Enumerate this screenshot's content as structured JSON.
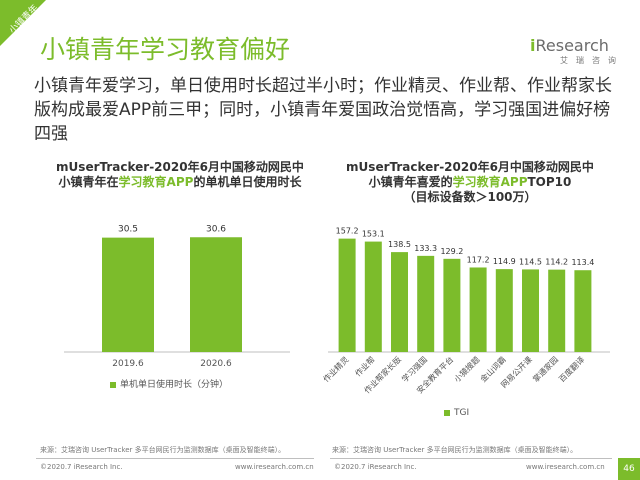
{
  "corner_tag": "小镇青年",
  "page_title": "小镇青年学习教育偏好",
  "logo": {
    "prefix": "i",
    "name": "Research",
    "sub": "艾瑞咨询"
  },
  "subtitle": "小镇青年爱学习，单日使用时长超过半小时；作业精灵、作业帮、作业帮家长版构成最爱APP前三甲；同时，小镇青年爱国政治觉悟高，学习强国进偏好榜四强",
  "left_chart_title": {
    "line1": "mUserTracker-2020年6月中国移动网民中",
    "line2_pre": "小镇青年在",
    "line2_hl": "学习教育APP",
    "line2_post": "的单机单日使用时长"
  },
  "right_chart_title": {
    "line1": "mUserTracker-2020年6月中国移动网民中",
    "line2_pre": "小镇青年喜爱的",
    "line2_hl": "学习教育APP",
    "line2_post": "TOP10",
    "line3": "（目标设备数＞100万）"
  },
  "chart_data": [
    {
      "type": "bar",
      "categories": [
        "2019.6",
        "2020.6"
      ],
      "series": [
        {
          "name": "单机单日使用时长（分钟）",
          "values": [
            30.5,
            30.6
          ]
        }
      ],
      "data_labels": [
        "30.5",
        "30.6"
      ],
      "ylim": [
        0,
        32
      ],
      "grid": false,
      "legend": "bottom",
      "color": "#7cbc2b"
    },
    {
      "type": "bar",
      "categories": [
        "作业精灵",
        "作业帮",
        "作业帮家长版",
        "学习强国",
        "安全教育平台",
        "小猿搜题",
        "金山词霸",
        "网易公开课",
        "掌通家园",
        "百度翻译"
      ],
      "series": [
        {
          "name": "TGI",
          "values": [
            157.2,
            153.1,
            138.5,
            133.3,
            129.2,
            117.2,
            114.9,
            114.5,
            114.2,
            113.4
          ]
        }
      ],
      "data_labels": [
        "157.2",
        "153.1",
        "138.5",
        "133.3",
        "129.2",
        "117.2",
        "114.9",
        "114.5",
        "114.2",
        "113.4"
      ],
      "ylim": [
        0,
        165
      ],
      "grid": false,
      "legend": "bottom",
      "color": "#7cbc2b"
    }
  ],
  "sources": {
    "left": "来源：艾瑞咨询 UserTracker 多平台网民行为监测数据库（桌面及智能终端）。",
    "right": "来源：艾瑞咨询 UserTracker 多平台网民行为监测数据库（桌面及智能终端）。"
  },
  "footer": {
    "copyright_left": "©2020.7 iResearch Inc.",
    "url_left": "www.iresearch.com.cn",
    "copyright_right": "©2020.7 iResearch Inc.",
    "url_right": "www.iresearch.com.cn",
    "page_number": "46"
  }
}
